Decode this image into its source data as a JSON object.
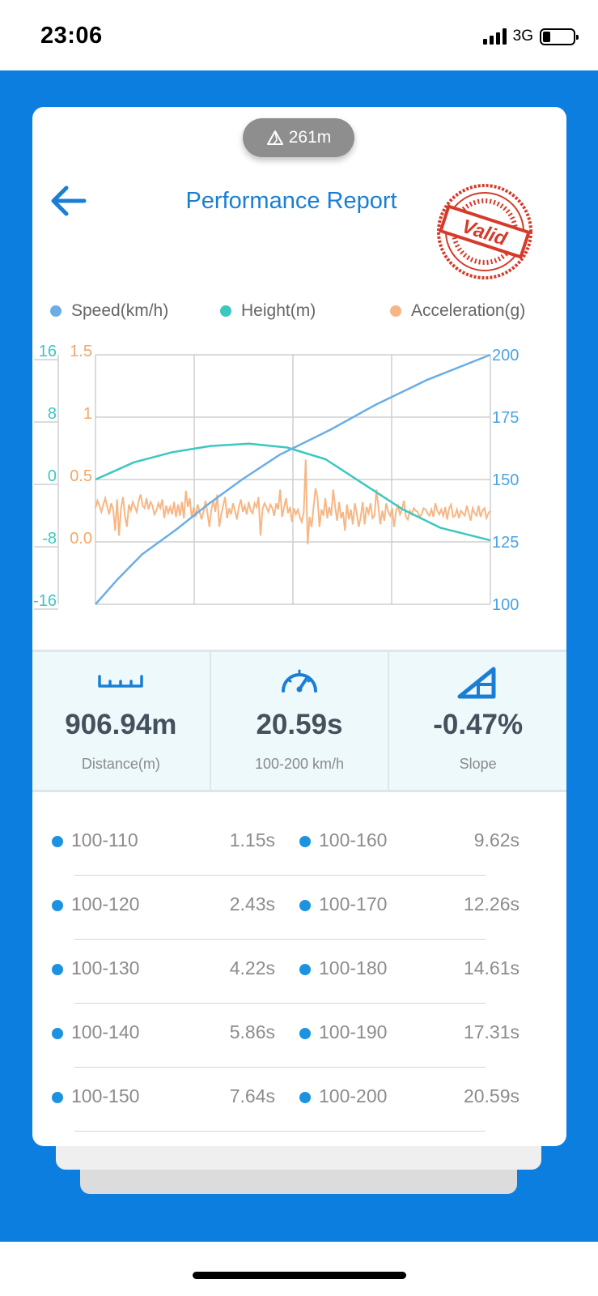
{
  "status_bar": {
    "time": "23:06",
    "network": "3G"
  },
  "header": {
    "altitude": "261m",
    "title": "Performance Report",
    "stamp_text": "Valid"
  },
  "legend": [
    {
      "label": "Speed(km/h)",
      "color": "#6aaee6"
    },
    {
      "label": "Height(m)",
      "color": "#3cc7bf"
    },
    {
      "label": "Acceleration(g)",
      "color": "#f7b684"
    }
  ],
  "chart_data": {
    "type": "line",
    "axes": {
      "height_ticks": [
        "16",
        "8",
        "0",
        "-8",
        "-16"
      ],
      "acceleration_ticks": [
        "1.5",
        "1",
        "0.5",
        "0.0"
      ],
      "speed_ticks": [
        "200",
        "175",
        "150",
        "125",
        "100"
      ]
    },
    "x_range": [
      0,
      20.59
    ],
    "series": [
      {
        "name": "Speed(km/h)",
        "axis": "right",
        "ylim": [
          100,
          200
        ],
        "x": [
          0,
          1.15,
          2.43,
          4.22,
          5.86,
          7.64,
          9.62,
          12.26,
          14.61,
          17.31,
          20.59
        ],
        "values": [
          100,
          110,
          120,
          130,
          140,
          150,
          160,
          170,
          180,
          190,
          200
        ]
      },
      {
        "name": "Height(m)",
        "axis": "left",
        "ylim": [
          -16,
          16
        ],
        "x": [
          0,
          2,
          4,
          6,
          8,
          10,
          12,
          14,
          16,
          18,
          20.59
        ],
        "values": [
          0,
          2.2,
          3.5,
          4.3,
          4.6,
          4.1,
          2.6,
          -0.6,
          -3.8,
          -6.2,
          -7.8
        ]
      },
      {
        "name": "Acceleration(g)",
        "axis": "left2",
        "ylim": [
          -0.5,
          1.5
        ],
        "x_step": 0.1,
        "values": [
          0.27,
          0.33,
          0.29,
          0.24,
          0.3,
          0.35,
          0.28,
          0.22,
          0.31,
          0.26,
          0.09,
          0.34,
          0.05,
          0.27,
          0.36,
          0.21,
          0.12,
          0.3,
          0.25,
          0.32,
          0.28,
          0.24,
          0.33,
          0.38,
          0.29,
          0.27,
          0.35,
          0.26,
          0.32,
          0.29,
          0.22,
          0.25,
          0.31,
          0.27,
          0.34,
          0.19,
          0.29,
          0.23,
          0.28,
          0.22,
          0.32,
          0.2,
          0.3,
          0.21,
          0.32,
          0.19,
          0.41,
          0.28,
          0.35,
          0.19,
          0.28,
          0.2,
          0.3,
          0.24,
          0.18,
          0.24,
          0.33,
          0.23,
          0.12,
          0.26,
          0.33,
          0.24,
          0.38,
          0.12,
          0.22,
          0.29,
          0.36,
          0.19,
          0.27,
          0.22,
          0.31,
          0.25,
          0.18,
          0.28,
          0.34,
          0.24,
          0.29,
          0.22,
          0.32,
          0.25,
          0.23,
          0.31,
          0.28,
          0.36,
          0.05,
          0.26,
          0.31,
          0.28,
          0.24,
          0.3,
          0.27,
          0.21,
          0.31,
          0.26,
          0.42,
          0.2,
          0.28,
          0.35,
          0.23,
          0.28,
          0.16,
          0.27,
          0.22,
          0.26,
          0.2,
          0.16,
          0.24,
          0.66,
          -0.02,
          0.2,
          0.12,
          0.28,
          0.43,
          0.36,
          0.12,
          0.26,
          0.21,
          0.35,
          0.19,
          0.28,
          0.21,
          0.42,
          0.28,
          0.17,
          0.32,
          0.19,
          0.24,
          0.09,
          0.3,
          0.18,
          0.26,
          0.14,
          0.31,
          0.23,
          0.12,
          0.2,
          0.32,
          0.14,
          0.28,
          0.23,
          0.31,
          0.19,
          0.21,
          0.42,
          0.28,
          0.14,
          0.25,
          0.17,
          0.31,
          0.24,
          0.21,
          0.27,
          0.12,
          0.25,
          0.29,
          0.22,
          0.26,
          0.33,
          0.2,
          0.18,
          0.25,
          0.22,
          0.27,
          0.25,
          0.24,
          0.2,
          0.22,
          0.27,
          0.26,
          0.23,
          0.21,
          0.26,
          0.2,
          0.31,
          0.25,
          0.22,
          0.26,
          0.21,
          0.28,
          0.18,
          0.27,
          0.3,
          0.2,
          0.21,
          0.26,
          0.19,
          0.25,
          0.23,
          0.21,
          0.29,
          0.23,
          0.17,
          0.27,
          0.23,
          0.21,
          0.29,
          0.2,
          0.25,
          0.27,
          0.19,
          0.23,
          0.25
        ]
      }
    ]
  },
  "stats": [
    {
      "icon": "ruler-icon",
      "value": "906.94m",
      "label": "Distance(m)"
    },
    {
      "icon": "speedometer-icon",
      "value": "20.59s",
      "label": "100-200 km/h"
    },
    {
      "icon": "slope-icon",
      "value": "-0.47%",
      "label": "Slope"
    }
  ],
  "splits": [
    {
      "left": {
        "range": "100-110",
        "time": "1.15s"
      },
      "right": {
        "range": "100-160",
        "time": "9.62s"
      }
    },
    {
      "left": {
        "range": "100-120",
        "time": "2.43s"
      },
      "right": {
        "range": "100-170",
        "time": "12.26s"
      }
    },
    {
      "left": {
        "range": "100-130",
        "time": "4.22s"
      },
      "right": {
        "range": "100-180",
        "time": "14.61s"
      }
    },
    {
      "left": {
        "range": "100-140",
        "time": "5.86s"
      },
      "right": {
        "range": "100-190",
        "time": "17.31s"
      }
    },
    {
      "left": {
        "range": "100-150",
        "time": "7.64s"
      },
      "right": {
        "range": "100-200",
        "time": "20.59s"
      }
    }
  ]
}
